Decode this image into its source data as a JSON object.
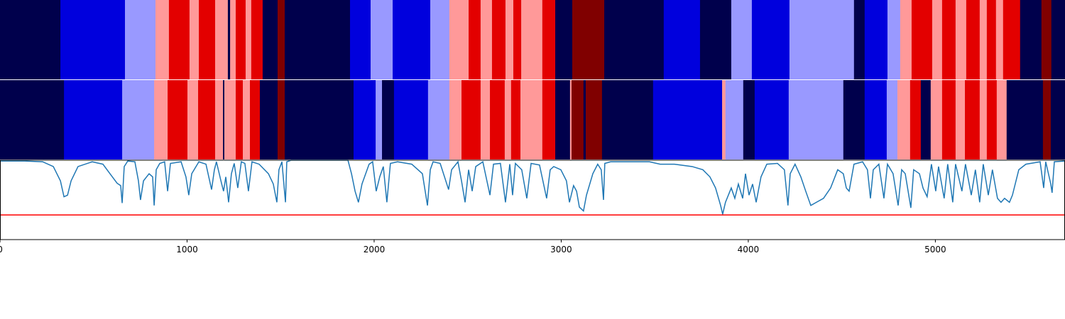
{
  "chart_data": {
    "type": "line",
    "xlim": [
      0,
      5693
    ],
    "xticks": [
      0,
      1000,
      2000,
      3000,
      4000,
      5000
    ],
    "ylim": [
      0,
      1
    ],
    "tracks": [
      {
        "edges": [
          0,
          323,
          668,
          831,
          903,
          1013,
          1063,
          1150,
          1218,
          1230,
          1260,
          1313,
          1343,
          1404,
          1484,
          1522,
          1871,
          1981,
          2099,
          2300,
          2402,
          2505,
          2569,
          2630,
          2702,
          2744,
          2786,
          2899,
          2968,
          3059,
          3230,
          3548,
          3742,
          3909,
          4019,
          4220,
          4565,
          4622,
          4744,
          4812,
          4873,
          4983,
          5036,
          5108,
          5165,
          5237,
          5275,
          5324,
          5362,
          5453,
          5567,
          5620,
          5693
        ],
        "colors": [
          "#00004c",
          "#0000dd",
          "#9999ff",
          "#ff9999",
          "#e30000",
          "#ff9999",
          "#e30000",
          "#ff9999",
          "#00004c",
          "#ff9999",
          "#e30000",
          "#ff9999",
          "#e30000",
          "#00004c",
          "#800000",
          "#00004c",
          "#0000dd",
          "#9999ff",
          "#0000dd",
          "#9999ff",
          "#ff9999",
          "#e30000",
          "#ff9999",
          "#e30000",
          "#ff9999",
          "#e30000",
          "#ff9999",
          "#e30000",
          "#00004c",
          "#800000",
          "#00004c",
          "#0000dd",
          "#00004c",
          "#9999ff",
          "#0000dd",
          "#9999ff",
          "#00004c",
          "#0000dd",
          "#9999ff",
          "#ff9999",
          "#e30000",
          "#ff9999",
          "#e30000",
          "#ff9999",
          "#e30000",
          "#ff9999",
          "#e30000",
          "#ff9999",
          "#e30000",
          "#00004c",
          "#800000",
          "#00004c"
        ]
      },
      {
        "edges": [
          0,
          342,
          653,
          824,
          896,
          1002,
          1059,
          1150,
          1192,
          1199,
          1260,
          1298,
          1336,
          1389,
          1484,
          1522,
          1890,
          2008,
          2042,
          2106,
          2288,
          2402,
          2467,
          2569,
          2619,
          2698,
          2732,
          2782,
          2899,
          2968,
          3047,
          3055,
          3119,
          3131,
          3218,
          3491,
          3860,
          3878,
          3973,
          4034,
          4216,
          4508,
          4622,
          4740,
          4797,
          4865,
          4922,
          4975,
          5036,
          5108,
          5158,
          5237,
          5275,
          5328,
          5381,
          5575,
          5617,
          5693
        ],
        "colors": [
          "#00004c",
          "#0000dd",
          "#9999ff",
          "#ff9999",
          "#e30000",
          "#ff9999",
          "#e30000",
          "#ff9999",
          "#00004c",
          "#ff9999",
          "#e30000",
          "#ff9999",
          "#e30000",
          "#00004c",
          "#800000",
          "#00004c",
          "#0000dd",
          "#9999ff",
          "#00004c",
          "#0000dd",
          "#9999ff",
          "#ff9999",
          "#e30000",
          "#ff9999",
          "#e30000",
          "#ff9999",
          "#e30000",
          "#ff9999",
          "#e30000",
          "#00004c",
          "#ff9999",
          "#800000",
          "#00004c",
          "#800000",
          "#00004c",
          "#0000dd",
          "#ff9999",
          "#9999ff",
          "#00004c",
          "#0000dd",
          "#9999ff",
          "#00004c",
          "#0000dd",
          "#9999ff",
          "#ff9999",
          "#e30000",
          "#00004c",
          "#ff9999",
          "#e30000",
          "#ff9999",
          "#e30000",
          "#ff9999",
          "#e30000",
          "#ff9999",
          "#00004c",
          "#800000",
          "#00004c"
        ]
      }
    ],
    "color": "#1f77b4",
    "threshold": 0.31,
    "threshold_color": "#ff0000",
    "x": [
      0,
      133,
      228,
      285,
      323,
      342,
      361,
      380,
      417,
      493,
      550,
      588,
      626,
      645,
      653,
      664,
      683,
      721,
      740,
      751,
      767,
      797,
      816,
      824,
      835,
      854,
      880,
      896,
      911,
      968,
      994,
      1009,
      1025,
      1063,
      1101,
      1131,
      1146,
      1157,
      1184,
      1195,
      1207,
      1222,
      1237,
      1252,
      1271,
      1290,
      1309,
      1328,
      1347,
      1385,
      1435,
      1461,
      1480,
      1491,
      1507,
      1526,
      1533,
      1556,
      1860,
      1879,
      1898,
      1916,
      1935,
      1973,
      1992,
      2011,
      2030,
      2049,
      2068,
      2087,
      2125,
      2201,
      2258,
      2285,
      2300,
      2315,
      2353,
      2398,
      2414,
      2448,
      2467,
      2486,
      2505,
      2524,
      2543,
      2581,
      2619,
      2638,
      2675,
      2702,
      2725,
      2740,
      2755,
      2789,
      2816,
      2839,
      2884,
      2922,
      2941,
      2960,
      2998,
      3028,
      3044,
      3066,
      3082,
      3097,
      3119,
      3135,
      3169,
      3195,
      3214,
      3226,
      3233,
      3264,
      3472,
      3529,
      3605,
      3700,
      3757,
      3795,
      3825,
      3852,
      3863,
      3878,
      3909,
      3928,
      3947,
      3970,
      3985,
      4004,
      4023,
      4042,
      4068,
      4099,
      4156,
      4193,
      4212,
      4224,
      4250,
      4281,
      4307,
      4334,
      4364,
      4402,
      4440,
      4478,
      4508,
      4524,
      4539,
      4565,
      4611,
      4637,
      4653,
      4668,
      4698,
      4725,
      4744,
      4774,
      4801,
      4820,
      4839,
      4869,
      4884,
      4915,
      4934,
      4956,
      4979,
      5002,
      5017,
      5047,
      5066,
      5093,
      5108,
      5142,
      5161,
      5192,
      5214,
      5237,
      5256,
      5283,
      5305,
      5332,
      5351,
      5370,
      5396,
      5412,
      5446,
      5484,
      5560,
      5579,
      5590,
      5617,
      5624,
      5636,
      5693
    ],
    "values": [
      0.99,
      0.99,
      0.98,
      0.92,
      0.74,
      0.54,
      0.56,
      0.74,
      0.92,
      0.98,
      0.95,
      0.83,
      0.71,
      0.68,
      0.46,
      0.92,
      0.99,
      0.98,
      0.74,
      0.5,
      0.74,
      0.83,
      0.79,
      0.43,
      0.88,
      0.96,
      0.98,
      0.61,
      0.96,
      0.98,
      0.79,
      0.56,
      0.83,
      0.98,
      0.95,
      0.63,
      0.88,
      0.98,
      0.71,
      0.61,
      0.79,
      0.47,
      0.83,
      0.96,
      0.65,
      0.98,
      0.96,
      0.61,
      0.98,
      0.95,
      0.83,
      0.7,
      0.47,
      0.88,
      0.98,
      0.47,
      0.98,
      1.0,
      1.0,
      0.83,
      0.61,
      0.47,
      0.7,
      0.95,
      0.98,
      0.61,
      0.79,
      0.92,
      0.47,
      0.96,
      0.98,
      0.95,
      0.83,
      0.43,
      0.88,
      0.98,
      0.96,
      0.63,
      0.88,
      0.98,
      0.74,
      0.47,
      0.88,
      0.61,
      0.92,
      0.98,
      0.56,
      0.95,
      0.96,
      0.47,
      0.95,
      0.56,
      0.96,
      0.88,
      0.52,
      0.96,
      0.94,
      0.52,
      0.88,
      0.92,
      0.88,
      0.74,
      0.47,
      0.68,
      0.61,
      0.41,
      0.36,
      0.56,
      0.83,
      0.95,
      0.88,
      0.5,
      0.96,
      0.98,
      0.98,
      0.95,
      0.95,
      0.92,
      0.88,
      0.79,
      0.65,
      0.43,
      0.32,
      0.47,
      0.65,
      0.52,
      0.7,
      0.52,
      0.83,
      0.56,
      0.7,
      0.47,
      0.79,
      0.95,
      0.96,
      0.88,
      0.43,
      0.83,
      0.95,
      0.79,
      0.61,
      0.43,
      0.47,
      0.52,
      0.65,
      0.88,
      0.83,
      0.65,
      0.61,
      0.95,
      0.98,
      0.88,
      0.52,
      0.88,
      0.95,
      0.52,
      0.95,
      0.83,
      0.43,
      0.88,
      0.83,
      0.4,
      0.88,
      0.83,
      0.65,
      0.54,
      0.95,
      0.61,
      0.92,
      0.52,
      0.95,
      0.47,
      0.95,
      0.61,
      0.95,
      0.56,
      0.88,
      0.47,
      0.95,
      0.56,
      0.88,
      0.52,
      0.47,
      0.52,
      0.47,
      0.56,
      0.88,
      0.95,
      0.98,
      0.65,
      0.98,
      0.7,
      0.59,
      0.98,
      0.99
    ]
  }
}
